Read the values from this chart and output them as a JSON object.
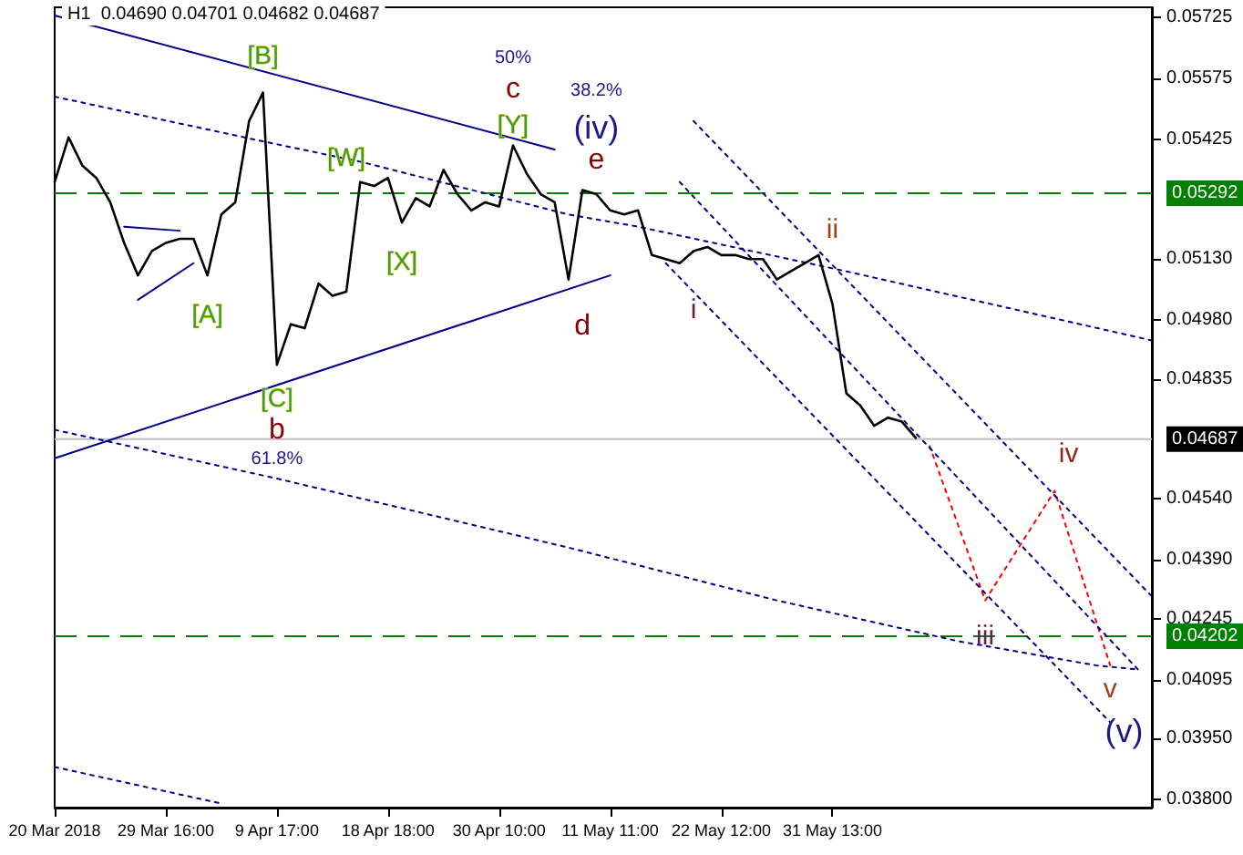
{
  "chart_data": {
    "type": "line",
    "title": "H1  0.04690 0.04701 0.04682 0.04687",
    "categories": [
      "20 Mar 2018",
      null,
      null,
      null,
      null,
      null,
      null,
      null,
      "29 Mar 16:00",
      null,
      null,
      null,
      null,
      null,
      null,
      null,
      "9 Apr 17:00",
      null,
      null,
      null,
      null,
      null,
      null,
      null,
      "18 Apr 18:00",
      null,
      null,
      null,
      null,
      null,
      null,
      null,
      "30 Apr 10:00",
      null,
      null,
      null,
      null,
      null,
      null,
      null,
      "11 May 11:00",
      null,
      null,
      null,
      null,
      null,
      null,
      null,
      "22 May 12:00",
      null,
      null,
      null,
      null,
      null,
      null,
      null,
      "31 May 13:00",
      null,
      null,
      null,
      null,
      null,
      null,
      null,
      null,
      null,
      null,
      null,
      null,
      null,
      null,
      null,
      null,
      null,
      null,
      null,
      null,
      null,
      null,
      null
    ],
    "ylim": [
      0.0378,
      0.0575
    ],
    "yticks": [
      0.05725,
      0.05575,
      0.05425,
      {
        "value": 0.0513,
        "label": "0.05130"
      },
      {
        "value": 0.0498,
        "label": "0.04980"
      },
      0.04835,
      {
        "value": 0.0454,
        "label": "0.04540"
      },
      {
        "value": 0.0439,
        "label": "0.04390"
      },
      0.04245,
      0.04095,
      {
        "value": 0.0395,
        "label": "0.03950"
      },
      {
        "value": 0.038,
        "label": "0.03800"
      }
    ],
    "grid": false,
    "marker": "none",
    "series": [
      {
        "color": "#000000",
        "line_style": "solid",
        "values": [
          0.0532,
          0.0543,
          0.0536,
          0.0533,
          0.0527,
          0.0517,
          0.0509,
          0.0515,
          0.0517,
          0.0518,
          0.0518,
          0.0509,
          0.0524,
          0.0527,
          0.0547,
          0.0554,
          0.0487,
          0.0497,
          0.0496,
          0.0507,
          0.0504,
          0.0505,
          0.0532,
          0.0531,
          0.0533,
          0.0522,
          0.0528,
          0.0526,
          0.0535,
          0.0529,
          0.0525,
          0.0527,
          0.0526,
          0.0541,
          0.0534,
          0.0529,
          0.0527,
          0.0508,
          0.053,
          0.0529,
          0.0525,
          0.0524,
          0.0525,
          0.0514,
          0.0513,
          0.0512,
          0.0515,
          0.0516,
          0.0514,
          0.0514,
          0.0513,
          0.0513,
          0.0508,
          0.051,
          0.0512,
          0.0514,
          0.0502,
          0.048,
          0.0477,
          0.0472,
          0.0474,
          0.0473,
          0.0469,
          null,
          null,
          null,
          null,
          null,
          null,
          null,
          null,
          null,
          null,
          null,
          null,
          null,
          null,
          null,
          null,
          null
        ]
      },
      {
        "color": "#ff0000",
        "line_style": "dotted",
        "values": [
          null,
          null,
          null,
          null,
          null,
          null,
          null,
          null,
          null,
          null,
          null,
          null,
          null,
          null,
          null,
          null,
          null,
          null,
          null,
          null,
          null,
          null,
          null,
          null,
          null,
          null,
          null,
          null,
          null,
          null,
          null,
          null,
          null,
          null,
          null,
          null,
          null,
          null,
          null,
          null,
          null,
          null,
          null,
          null,
          null,
          null,
          null,
          null,
          null,
          null,
          null,
          null,
          null,
          null,
          null,
          null,
          null,
          null,
          null,
          null,
          null,
          null,
          null,
          0.0467,
          null,
          null,
          null,
          0.0429,
          null,
          null,
          null,
          null,
          0.0456,
          null,
          null,
          null,
          0.0413,
          null,
          null,
          null
        ]
      },
      {
        "color": "#00008b",
        "line_style": "solid",
        "values": [
          0.0573,
          null,
          null,
          null,
          null,
          null,
          null,
          null,
          null,
          null,
          null,
          null,
          null,
          null,
          null,
          null,
          null,
          null,
          null,
          null,
          null,
          null,
          null,
          null,
          null,
          null,
          null,
          null,
          null,
          null,
          null,
          null,
          null,
          null,
          null,
          null,
          0.054,
          null,
          null,
          null,
          null,
          null,
          null,
          null,
          null,
          null,
          null,
          null,
          null,
          null,
          null,
          null,
          null,
          null,
          null,
          null,
          null,
          null,
          null,
          null,
          null,
          null,
          null,
          null,
          null,
          null,
          null,
          null,
          null,
          null,
          null,
          null,
          null,
          null,
          null,
          null,
          null,
          null,
          null,
          null
        ]
      },
      {
        "color": "#00008b",
        "line_style": "solid",
        "values": [
          0.0464,
          null,
          null,
          null,
          null,
          null,
          null,
          null,
          null,
          null,
          null,
          null,
          null,
          null,
          null,
          null,
          null,
          null,
          null,
          null,
          null,
          null,
          null,
          null,
          null,
          null,
          null,
          null,
          null,
          null,
          null,
          null,
          null,
          null,
          null,
          null,
          null,
          null,
          null,
          null,
          0.0509,
          null,
          null,
          null,
          null,
          null,
          null,
          null,
          null,
          null,
          null,
          null,
          null,
          null,
          null,
          null,
          null,
          null,
          null,
          null,
          null,
          null,
          null,
          null,
          null,
          null,
          null,
          null,
          null,
          null,
          null,
          null,
          null,
          null,
          null,
          null,
          null,
          null,
          null,
          null
        ]
      },
      {
        "color": "#00008b",
        "line_style": "solid",
        "values": [
          null,
          null,
          null,
          null,
          null,
          0.0521,
          null,
          null,
          null,
          0.052,
          null,
          null,
          null,
          null,
          null,
          null,
          null,
          null,
          null,
          null,
          null,
          null,
          null,
          null,
          null,
          null,
          null,
          null,
          null,
          null,
          null,
          null,
          null,
          null,
          null,
          null,
          null,
          null,
          null,
          null,
          null,
          null,
          null,
          null,
          null,
          null,
          null,
          null,
          null,
          null,
          null,
          null,
          null,
          null,
          null,
          null,
          null,
          null,
          null,
          null,
          null,
          null,
          null,
          null,
          null,
          null,
          null,
          null,
          null,
          null,
          null,
          null,
          null,
          null,
          null,
          null,
          null,
          null,
          null,
          null
        ]
      },
      {
        "color": "#00008b",
        "line_style": "solid",
        "values": [
          null,
          null,
          null,
          null,
          null,
          null,
          0.0503,
          null,
          null,
          null,
          0.0512,
          null,
          null,
          null,
          null,
          null,
          null,
          null,
          null,
          null,
          null,
          null,
          null,
          null,
          null,
          null,
          null,
          null,
          null,
          null,
          null,
          null,
          null,
          null,
          null,
          null,
          null,
          null,
          null,
          null,
          null,
          null,
          null,
          null,
          null,
          null,
          null,
          null,
          null,
          null,
          null,
          null,
          null,
          null,
          null,
          null,
          null,
          null,
          null,
          null,
          null,
          null,
          null,
          null,
          null,
          null,
          null,
          null,
          null,
          null,
          null,
          null,
          null,
          null,
          null,
          null,
          null,
          null,
          null,
          null
        ]
      },
      {
        "color": "#00008b",
        "line_style": "dotted",
        "values": [
          0.0553,
          null,
          null,
          null,
          null,
          null,
          null,
          null,
          null,
          null,
          null,
          null,
          null,
          null,
          null,
          0.0542,
          null,
          null,
          null,
          null,
          null,
          null,
          0.0537,
          null,
          null,
          null,
          null,
          null,
          null,
          null,
          null,
          null,
          null,
          null,
          null,
          null,
          null,
          0.0524,
          null,
          null,
          null,
          null,
          0.0521,
          null,
          null,
          null,
          null,
          null,
          null,
          null,
          null,
          null,
          null,
          null,
          null,
          null,
          null,
          0.051,
          null,
          null,
          null,
          null,
          null,
          null,
          null,
          null,
          null,
          null,
          null,
          null,
          null,
          null,
          null,
          null,
          null,
          null,
          null,
          null,
          null,
          0.0493
        ]
      },
      {
        "color": "#00008b",
        "line_style": "dotted",
        "values": [
          0.0471,
          null,
          null,
          null,
          null,
          null,
          null,
          null,
          null,
          null,
          null,
          null,
          null,
          null,
          null,
          null,
          0.0459,
          null,
          null,
          null,
          null,
          null,
          null,
          null,
          null,
          null,
          null,
          null,
          null,
          null,
          null,
          null,
          null,
          null,
          null,
          null,
          null,
          0.0442,
          null,
          null,
          null,
          null,
          null,
          null,
          null,
          null,
          null,
          null,
          null,
          null,
          null,
          null,
          0.0429,
          null,
          null,
          null,
          null,
          null,
          null,
          null,
          null,
          null,
          null,
          null,
          null,
          0.0419,
          null,
          null,
          null,
          null,
          null,
          null,
          null,
          null,
          null,
          0.0413,
          null,
          null,
          0.0412,
          null
        ]
      },
      {
        "color": "#00008b",
        "line_style": "dotted",
        "values": [
          0.0388,
          null,
          null,
          null,
          null,
          null,
          null,
          null,
          null,
          null,
          null,
          null,
          0.0379,
          null,
          null,
          null,
          null,
          null,
          null,
          null,
          null,
          null,
          null,
          null,
          null,
          null,
          null,
          null,
          null,
          null,
          null,
          null,
          null,
          null,
          null,
          null,
          null,
          null,
          null,
          null,
          null,
          null,
          null,
          null,
          null,
          null,
          null,
          null,
          null,
          null,
          null,
          null,
          null,
          null,
          null,
          null,
          null,
          null,
          null,
          null,
          null,
          null,
          null,
          null,
          null,
          null,
          null,
          null,
          null,
          null,
          null,
          null,
          null,
          null,
          null,
          null,
          null,
          null,
          null,
          null
        ]
      },
      {
        "color": "#00008b",
        "line_style": "dotted",
        "values": [
          null,
          null,
          null,
          null,
          null,
          null,
          null,
          null,
          null,
          null,
          null,
          null,
          null,
          null,
          null,
          null,
          null,
          null,
          null,
          null,
          null,
          null,
          null,
          null,
          null,
          null,
          null,
          null,
          null,
          null,
          null,
          null,
          null,
          null,
          null,
          null,
          null,
          null,
          null,
          null,
          null,
          null,
          null,
          null,
          null,
          null,
          0.0547,
          null,
          null,
          null,
          null,
          null,
          null,
          null,
          null,
          null,
          null,
          null,
          null,
          null,
          null,
          null,
          null,
          null,
          null,
          null,
          null,
          null,
          null,
          null,
          null,
          null,
          null,
          null,
          null,
          null,
          null,
          null,
          null,
          0.043
        ]
      },
      {
        "color": "#00008b",
        "line_style": "dotted",
        "values": [
          null,
          null,
          null,
          null,
          null,
          null,
          null,
          null,
          null,
          null,
          null,
          null,
          null,
          null,
          null,
          null,
          null,
          null,
          null,
          null,
          null,
          null,
          null,
          null,
          null,
          null,
          null,
          null,
          null,
          null,
          null,
          null,
          null,
          null,
          null,
          null,
          null,
          null,
          null,
          null,
          null,
          null,
          null,
          null,
          null,
          0.0532,
          null,
          null,
          null,
          null,
          null,
          null,
          null,
          null,
          null,
          null,
          null,
          null,
          null,
          null,
          null,
          null,
          null,
          null,
          null,
          null,
          null,
          null,
          null,
          null,
          null,
          null,
          null,
          null,
          null,
          null,
          null,
          null,
          0.0412,
          null
        ]
      },
      {
        "color": "#00008b",
        "line_style": "dotted",
        "values": [
          null,
          null,
          null,
          null,
          null,
          null,
          null,
          null,
          null,
          null,
          null,
          null,
          null,
          null,
          null,
          null,
          null,
          null,
          null,
          null,
          null,
          null,
          null,
          null,
          null,
          null,
          null,
          null,
          null,
          null,
          null,
          null,
          null,
          null,
          null,
          null,
          null,
          null,
          null,
          null,
          null,
          null,
          null,
          null,
          0.0512,
          null,
          null,
          null,
          null,
          null,
          null,
          null,
          null,
          null,
          null,
          null,
          null,
          null,
          null,
          null,
          null,
          null,
          null,
          null,
          null,
          null,
          null,
          null,
          null,
          null,
          null,
          null,
          null,
          null,
          null,
          null,
          0.0399,
          null,
          null,
          null
        ]
      }
    ],
    "ref_lines": [
      {
        "axis": "y",
        "value": 0.05292,
        "label": "0.05292",
        "color": "#008000",
        "line_style": "dashed"
      },
      {
        "axis": "y",
        "value": 0.04202,
        "label": "0.04202",
        "color": "#008000",
        "line_style": "dashed"
      },
      {
        "axis": "y",
        "value": 0.04687,
        "label": "0.04687",
        "color": "#c0c0c0",
        "line_style": "solid"
      }
    ],
    "annotations": [
      "[B]",
      "50%",
      "c",
      "38.2%",
      "[Y]",
      "(iv)",
      "[W]",
      "e",
      "ii",
      "[X]",
      "[A]",
      "i",
      "d",
      "[C]",
      "b",
      "61.8%",
      "iv",
      "iii",
      "v",
      "(v)"
    ]
  }
}
